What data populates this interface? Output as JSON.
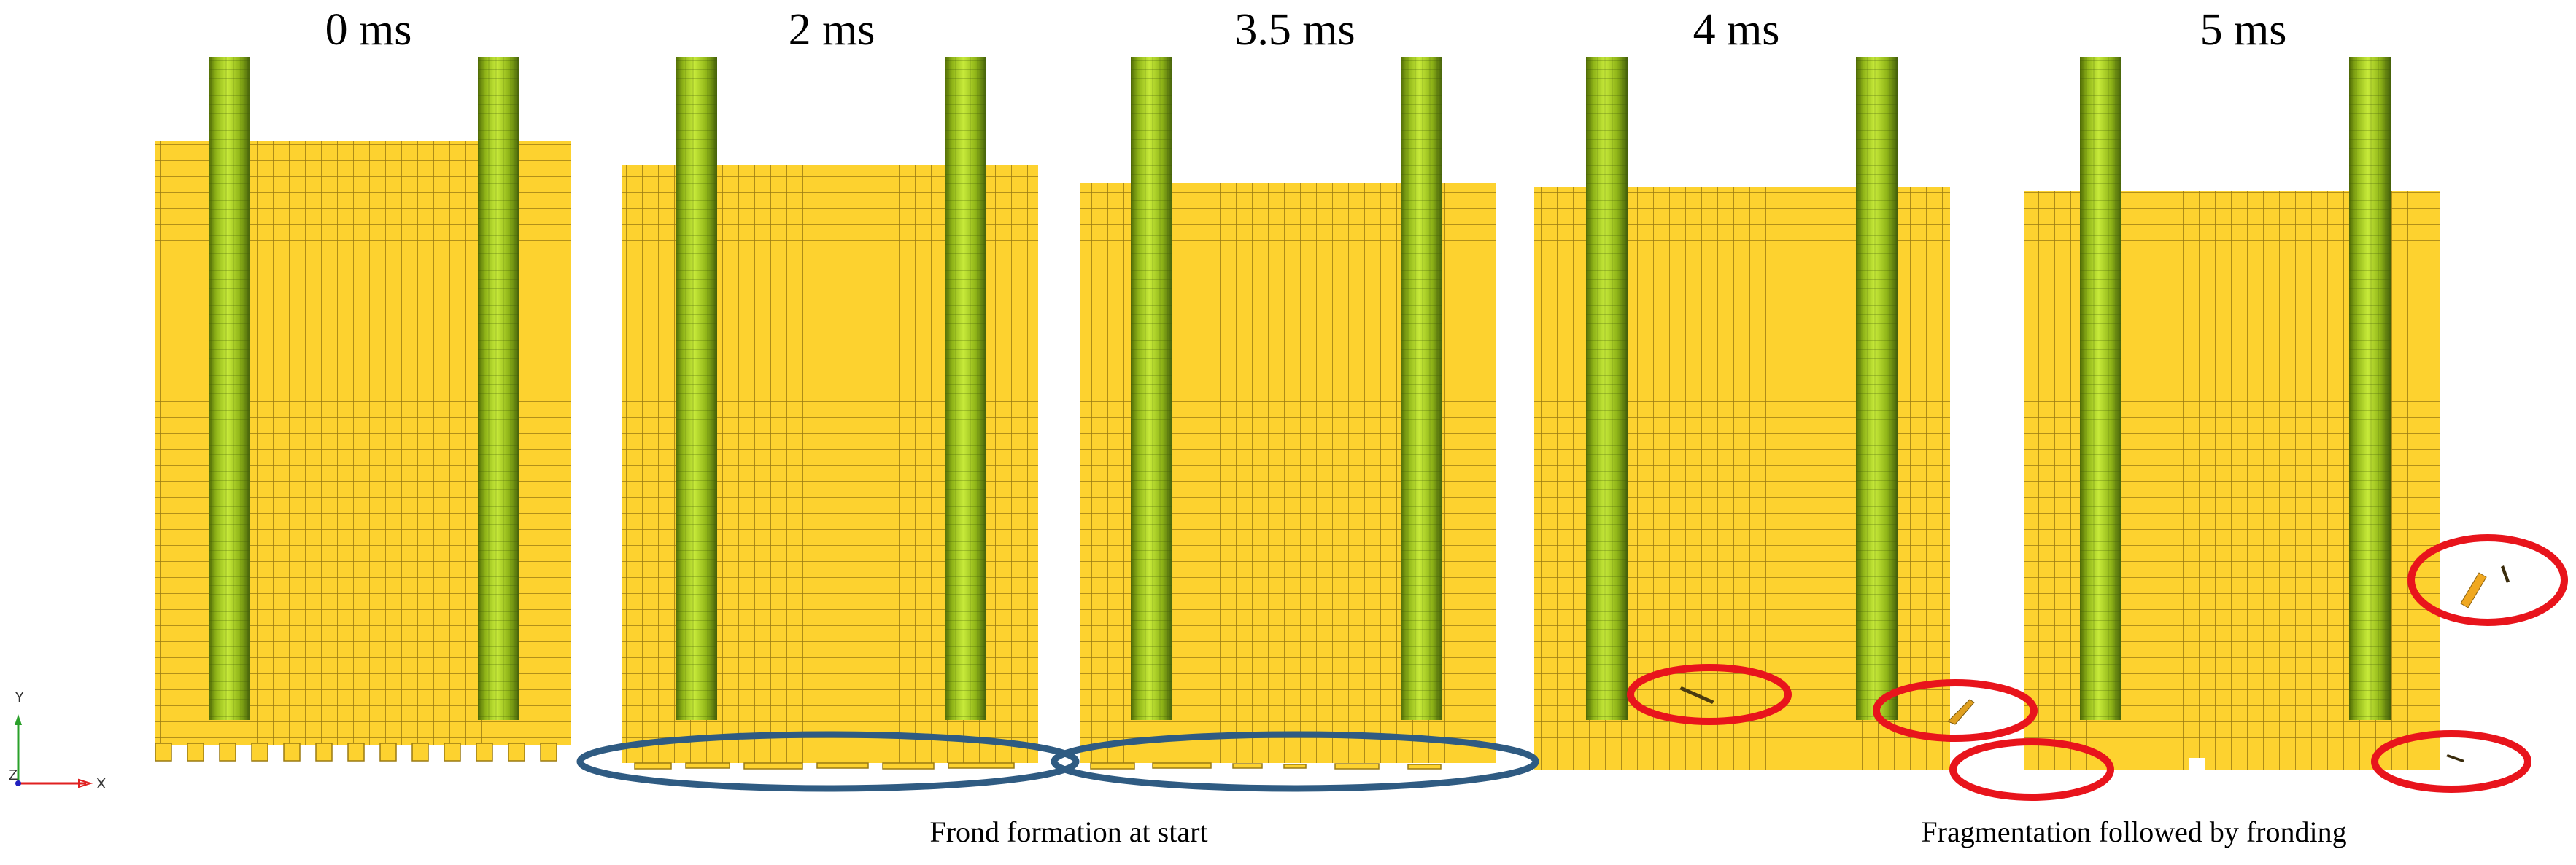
{
  "frames": [
    {
      "label": "0 ms"
    },
    {
      "label": "2 ms"
    },
    {
      "label": "3.5 ms"
    },
    {
      "label": "4 ms"
    },
    {
      "label": "5 ms"
    }
  ],
  "captions": {
    "left": "Frond formation at start",
    "right": "Fragmentation followed by fronding"
  },
  "axis_triad": {
    "y": "Y",
    "z": "Z",
    "x": "X"
  },
  "colors": {
    "slab": "#fdd22f",
    "mesh_line": "#9a7a12",
    "rod_light": "#b7e02a",
    "rod_dark": "#4f6a06",
    "highlight_red": "#e8141c",
    "highlight_blue": "#2f5b82",
    "debris": "#e0a020"
  }
}
